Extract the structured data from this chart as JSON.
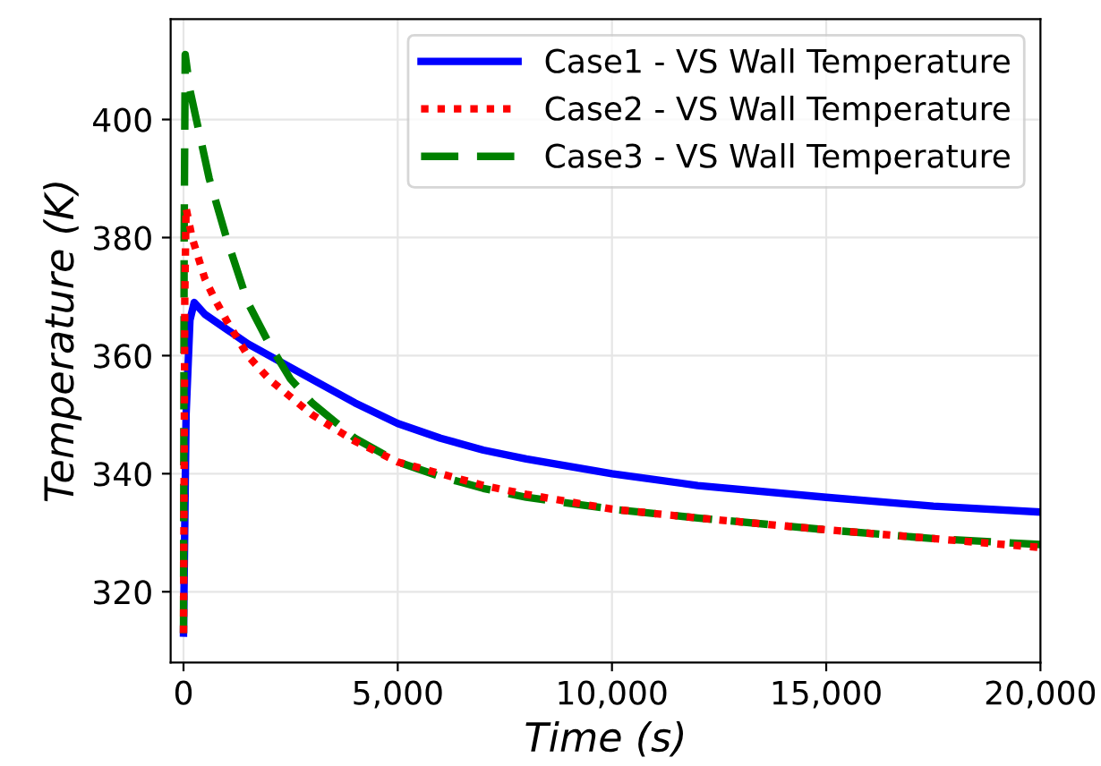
{
  "chart_data": {
    "type": "line",
    "xlabel": "Time (s)",
    "ylabel": "Temperature (K)",
    "xlim": [
      -300,
      20000
    ],
    "ylim": [
      308,
      417
    ],
    "xticks": [
      {
        "value": 0,
        "label": "0"
      },
      {
        "value": 5000,
        "label": "5,000"
      },
      {
        "value": 10000,
        "label": "10,000"
      },
      {
        "value": 15000,
        "label": "15,000"
      },
      {
        "value": 20000,
        "label": "20,000"
      }
    ],
    "yticks": [
      320,
      340,
      360,
      380,
      400
    ],
    "grid": true,
    "legend": "top right",
    "marker": "none",
    "series": [
      {
        "name": "Case1 - VS Wall Temperature",
        "color": "#0000ff",
        "line_style": "solid",
        "x": [
          0,
          60,
          150,
          250,
          500,
          1000,
          1500,
          2000,
          2500,
          3000,
          4000,
          5000,
          6000,
          7000,
          8000,
          10000,
          12000,
          15000,
          17500,
          20000
        ],
        "values": [
          313,
          350,
          366,
          369,
          367,
          364.5,
          362,
          360,
          358,
          356,
          352,
          348.5,
          346,
          344,
          342.5,
          340,
          338,
          336,
          334.5,
          333.5
        ]
      },
      {
        "name": "Case2 - VS Wall Temperature",
        "color": "#ff0000",
        "line_style": "dotted",
        "x": [
          0,
          30,
          60,
          200,
          500,
          700,
          1000,
          1500,
          2000,
          2500,
          3000,
          4000,
          5000,
          6000,
          7000,
          8000,
          10000,
          12000,
          15000,
          17500,
          20000
        ],
        "values": [
          313,
          370,
          385,
          380,
          373,
          370,
          366,
          360,
          356,
          353,
          350,
          345.5,
          342,
          340,
          338,
          336.5,
          334,
          332.5,
          330.5,
          329,
          327.5
        ]
      },
      {
        "name": "Case3 - VS Wall Temperature",
        "color": "#008000",
        "line_style": "dashed",
        "x": [
          0,
          15,
          40,
          150,
          300,
          600,
          1000,
          1500,
          2000,
          2500,
          3000,
          3500,
          4000,
          5000,
          6000,
          7000,
          8000,
          10000,
          12000,
          15000,
          17500,
          20000
        ],
        "values": [
          313,
          380,
          411,
          405,
          400,
          390,
          380,
          369,
          362,
          356,
          352,
          349,
          346,
          342,
          339.5,
          337.5,
          336,
          334,
          332.5,
          330.5,
          329,
          328
        ]
      }
    ]
  }
}
